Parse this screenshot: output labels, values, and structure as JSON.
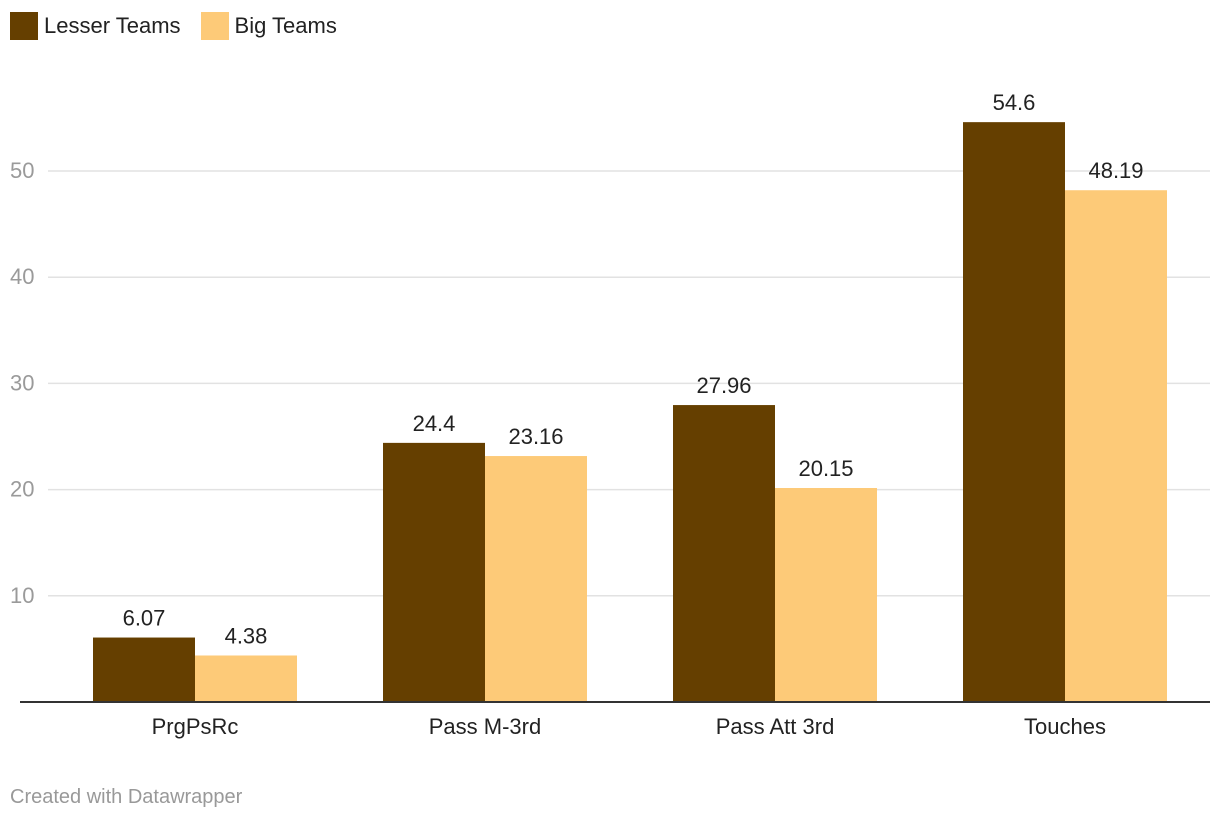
{
  "chart_data": {
    "type": "bar",
    "title": "",
    "xlabel": "",
    "ylabel": "",
    "categories": [
      "PrgPsRc",
      "Pass M-3rd",
      "Pass Att 3rd",
      "Touches"
    ],
    "series": [
      {
        "name": "Lesser Teams",
        "color": "#653f00",
        "values": [
          6.07,
          24.4,
          27.96,
          54.6
        ]
      },
      {
        "name": "Big Teams",
        "color": "#fdca78",
        "values": [
          4.38,
          23.16,
          20.15,
          48.19
        ]
      }
    ],
    "yticks": [
      10,
      20,
      30,
      40,
      50
    ],
    "ylim": [
      0,
      60
    ],
    "grid": true,
    "legend_position": "top-left",
    "show_value_labels": true
  },
  "footer": {
    "credit": "Created with Datawrapper"
  }
}
